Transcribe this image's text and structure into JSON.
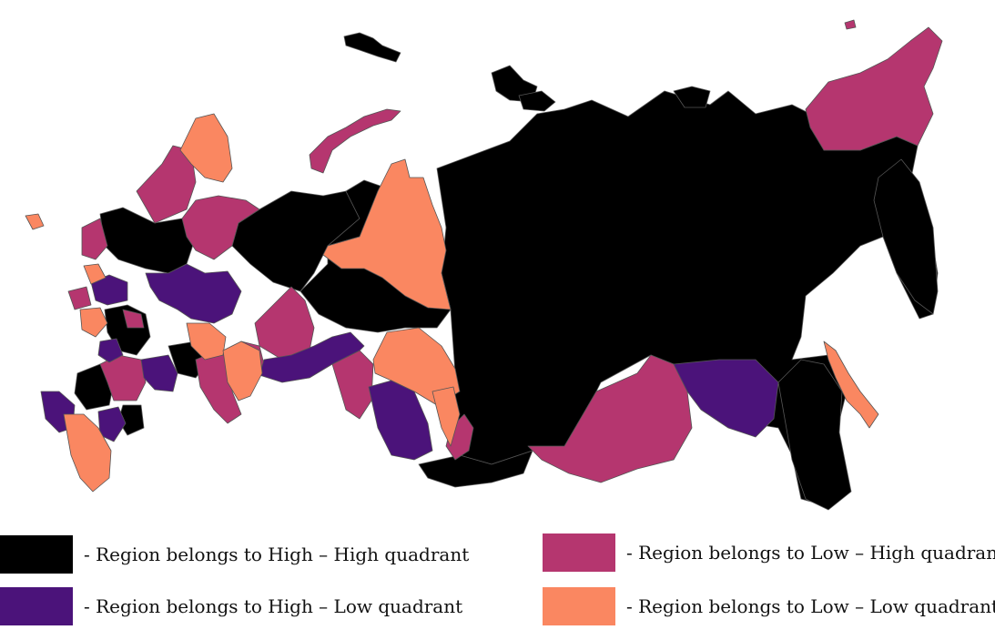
{
  "colors": {
    "high_high": "#000000",
    "high_low": "#4b137a",
    "low_high": "#b5366f",
    "low_low": "#fa8761",
    "region_border": "#555555"
  },
  "legend": {
    "high_high": "- Region belongs to High – High quadrant",
    "high_low": "- Region belongs to High – Low quadrant",
    "low_high": "- Region belongs to Low – High quadrant",
    "low_low": "- Region belongs to Low – Low quadrant"
  }
}
